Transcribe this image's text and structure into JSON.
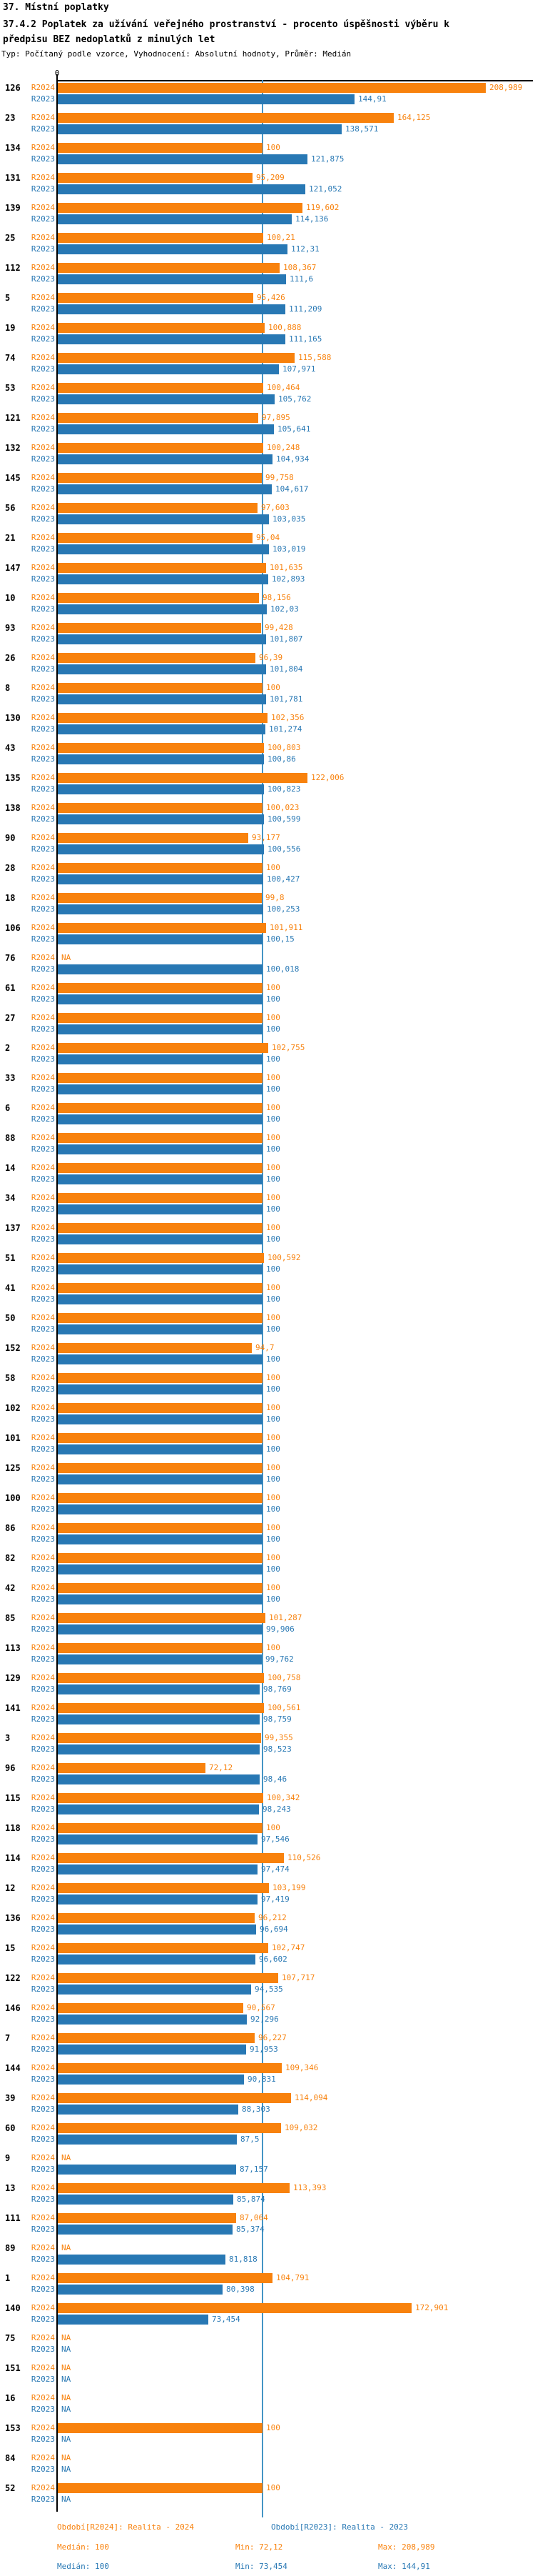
{
  "header": {
    "line1": "37. Místní poplatky",
    "line2": "37.4.2 Poplatek za užívání veřejného prostranství - procento úspěšnosti výběru k předpisu BEZ nedoplatků z minulých let",
    "line3": "Typ: Počítaný podle vzorce, Vyhodnocení: Absolutní hodnoty, Průměr: Medián"
  },
  "axis": {
    "zero_label": "0",
    "median_reference_value": 100,
    "x_min": 0,
    "x_max_visible": 232,
    "decimal_separator": ","
  },
  "colors": {
    "r2024_bar": "#F8820D",
    "r2023_bar": "#2878B4",
    "median_line": "#4494C4",
    "axis": "#000000",
    "background": "#FFFFFF"
  },
  "series_labels": {
    "r2024": "R2024",
    "r2023": "R2023",
    "na": "NA"
  },
  "legend": {
    "r2024_title": "Období[R2024]: Realita - 2024",
    "r2023_title": "Období[R2023]: Realita - 2023",
    "r2024_median": "Medián: 100",
    "r2024_min": "Min: 72,12",
    "r2024_max": "Max: 208,989",
    "r2023_median": "Medián: 100",
    "r2023_min": "Min: 73,454",
    "r2023_max": "Max: 144,91"
  },
  "chart_data": {
    "type": "bar",
    "orientation": "horizontal",
    "title": "37.4.2 Poplatek za užívání veřejného prostranství - procento úspěšnosti výběru k předpisu BEZ nedoplatků z minulých let",
    "xlabel": "",
    "ylabel": "",
    "xlim": [
      0,
      232
    ],
    "grid": false,
    "legend_position": "bottom",
    "reference_line_x": 100,
    "series_names": [
      "R2024",
      "R2023"
    ],
    "na_label": "NA",
    "rows": [
      {
        "id": "126",
        "v2024": 208.989,
        "t2024": "208,989",
        "v2023": 144.91,
        "t2023": "144,91"
      },
      {
        "id": "23",
        "v2024": 164.125,
        "t2024": "164,125",
        "v2023": 138.571,
        "t2023": "138,571"
      },
      {
        "id": "134",
        "v2024": 100,
        "t2024": "100",
        "v2023": 121.875,
        "t2023": "121,875"
      },
      {
        "id": "131",
        "v2024": 95.209,
        "t2024": "95,209",
        "v2023": 121.052,
        "t2023": "121,052"
      },
      {
        "id": "139",
        "v2024": 119.602,
        "t2024": "119,602",
        "v2023": 114.136,
        "t2023": "114,136"
      },
      {
        "id": "25",
        "v2024": 100.21,
        "t2024": "100,21",
        "v2023": 112.31,
        "t2023": "112,31"
      },
      {
        "id": "112",
        "v2024": 108.367,
        "t2024": "108,367",
        "v2023": 111.6,
        "t2023": "111,6"
      },
      {
        "id": "5",
        "v2024": 95.426,
        "t2024": "95,426",
        "v2023": 111.209,
        "t2023": "111,209"
      },
      {
        "id": "19",
        "v2024": 100.888,
        "t2024": "100,888",
        "v2023": 111.165,
        "t2023": "111,165"
      },
      {
        "id": "74",
        "v2024": 115.588,
        "t2024": "115,588",
        "v2023": 107.971,
        "t2023": "107,971"
      },
      {
        "id": "53",
        "v2024": 100.464,
        "t2024": "100,464",
        "v2023": 105.762,
        "t2023": "105,762"
      },
      {
        "id": "121",
        "v2024": 97.895,
        "t2024": "97,895",
        "v2023": 105.641,
        "t2023": "105,641"
      },
      {
        "id": "132",
        "v2024": 100.248,
        "t2024": "100,248",
        "v2023": 104.934,
        "t2023": "104,934"
      },
      {
        "id": "145",
        "v2024": 99.758,
        "t2024": "99,758",
        "v2023": 104.617,
        "t2023": "104,617"
      },
      {
        "id": "56",
        "v2024": 97.603,
        "t2024": "97,603",
        "v2023": 103.035,
        "t2023": "103,035"
      },
      {
        "id": "21",
        "v2024": 95.04,
        "t2024": "95,04",
        "v2023": 103.019,
        "t2023": "103,019"
      },
      {
        "id": "147",
        "v2024": 101.635,
        "t2024": "101,635",
        "v2023": 102.893,
        "t2023": "102,893"
      },
      {
        "id": "10",
        "v2024": 98.156,
        "t2024": "98,156",
        "v2023": 102.03,
        "t2023": "102,03"
      },
      {
        "id": "93",
        "v2024": 99.428,
        "t2024": "99,428",
        "v2023": 101.807,
        "t2023": "101,807"
      },
      {
        "id": "26",
        "v2024": 96.39,
        "t2024": "96,39",
        "v2023": 101.804,
        "t2023": "101,804"
      },
      {
        "id": "8",
        "v2024": 100,
        "t2024": "100",
        "v2023": 101.781,
        "t2023": "101,781"
      },
      {
        "id": "130",
        "v2024": 102.356,
        "t2024": "102,356",
        "v2023": 101.274,
        "t2023": "101,274"
      },
      {
        "id": "43",
        "v2024": 100.803,
        "t2024": "100,803",
        "v2023": 100.86,
        "t2023": "100,86"
      },
      {
        "id": "135",
        "v2024": 122.006,
        "t2024": "122,006",
        "v2023": 100.823,
        "t2023": "100,823"
      },
      {
        "id": "138",
        "v2024": 100.023,
        "t2024": "100,023",
        "v2023": 100.599,
        "t2023": "100,599"
      },
      {
        "id": "90",
        "v2024": 93.177,
        "t2024": "93,177",
        "v2023": 100.556,
        "t2023": "100,556"
      },
      {
        "id": "28",
        "v2024": 100,
        "t2024": "100",
        "v2023": 100.427,
        "t2023": "100,427"
      },
      {
        "id": "18",
        "v2024": 99.8,
        "t2024": "99,8",
        "v2023": 100.253,
        "t2023": "100,253"
      },
      {
        "id": "106",
        "v2024": 101.911,
        "t2024": "101,911",
        "v2023": 100.15,
        "t2023": "100,15"
      },
      {
        "id": "76",
        "v2024": null,
        "t2024": "NA",
        "v2023": 100.018,
        "t2023": "100,018"
      },
      {
        "id": "61",
        "v2024": 100,
        "t2024": "100",
        "v2023": 100,
        "t2023": "100"
      },
      {
        "id": "27",
        "v2024": 100,
        "t2024": "100",
        "v2023": 100,
        "t2023": "100"
      },
      {
        "id": "2",
        "v2024": 102.755,
        "t2024": "102,755",
        "v2023": 100,
        "t2023": "100"
      },
      {
        "id": "33",
        "v2024": 100,
        "t2024": "100",
        "v2023": 100,
        "t2023": "100"
      },
      {
        "id": "6",
        "v2024": 100,
        "t2024": "100",
        "v2023": 100,
        "t2023": "100"
      },
      {
        "id": "88",
        "v2024": 100,
        "t2024": "100",
        "v2023": 100,
        "t2023": "100"
      },
      {
        "id": "14",
        "v2024": 100,
        "t2024": "100",
        "v2023": 100,
        "t2023": "100"
      },
      {
        "id": "34",
        "v2024": 100,
        "t2024": "100",
        "v2023": 100,
        "t2023": "100"
      },
      {
        "id": "137",
        "v2024": 100,
        "t2024": "100",
        "v2023": 100,
        "t2023": "100"
      },
      {
        "id": "51",
        "v2024": 100.592,
        "t2024": "100,592",
        "v2023": 100,
        "t2023": "100"
      },
      {
        "id": "41",
        "v2024": 100,
        "t2024": "100",
        "v2023": 100,
        "t2023": "100"
      },
      {
        "id": "50",
        "v2024": 100,
        "t2024": "100",
        "v2023": 100,
        "t2023": "100"
      },
      {
        "id": "152",
        "v2024": 94.7,
        "t2024": "94,7",
        "v2023": 100,
        "t2023": "100"
      },
      {
        "id": "58",
        "v2024": 100,
        "t2024": "100",
        "v2023": 100,
        "t2023": "100"
      },
      {
        "id": "102",
        "v2024": 100,
        "t2024": "100",
        "v2023": 100,
        "t2023": "100"
      },
      {
        "id": "101",
        "v2024": 100,
        "t2024": "100",
        "v2023": 100,
        "t2023": "100"
      },
      {
        "id": "125",
        "v2024": 100,
        "t2024": "100",
        "v2023": 100,
        "t2023": "100"
      },
      {
        "id": "100",
        "v2024": 100,
        "t2024": "100",
        "v2023": 100,
        "t2023": "100"
      },
      {
        "id": "86",
        "v2024": 100,
        "t2024": "100",
        "v2023": 100,
        "t2023": "100"
      },
      {
        "id": "82",
        "v2024": 100,
        "t2024": "100",
        "v2023": 100,
        "t2023": "100"
      },
      {
        "id": "42",
        "v2024": 100,
        "t2024": "100",
        "v2023": 100,
        "t2023": "100"
      },
      {
        "id": "85",
        "v2024": 101.287,
        "t2024": "101,287",
        "v2023": 99.906,
        "t2023": "99,906"
      },
      {
        "id": "113",
        "v2024": 100,
        "t2024": "100",
        "v2023": 99.762,
        "t2023": "99,762"
      },
      {
        "id": "129",
        "v2024": 100.758,
        "t2024": "100,758",
        "v2023": 98.769,
        "t2023": "98,769"
      },
      {
        "id": "141",
        "v2024": 100.561,
        "t2024": "100,561",
        "v2023": 98.759,
        "t2023": "98,759"
      },
      {
        "id": "3",
        "v2024": 99.355,
        "t2024": "99,355",
        "v2023": 98.523,
        "t2023": "98,523"
      },
      {
        "id": "96",
        "v2024": 72.12,
        "t2024": "72,12",
        "v2023": 98.46,
        "t2023": "98,46"
      },
      {
        "id": "115",
        "v2024": 100.342,
        "t2024": "100,342",
        "v2023": 98.243,
        "t2023": "98,243"
      },
      {
        "id": "118",
        "v2024": 100,
        "t2024": "100",
        "v2023": 97.546,
        "t2023": "97,546"
      },
      {
        "id": "114",
        "v2024": 110.526,
        "t2024": "110,526",
        "v2023": 97.474,
        "t2023": "97,474"
      },
      {
        "id": "12",
        "v2024": 103.199,
        "t2024": "103,199",
        "v2023": 97.419,
        "t2023": "97,419"
      },
      {
        "id": "136",
        "v2024": 96.212,
        "t2024": "96,212",
        "v2023": 96.694,
        "t2023": "96,694"
      },
      {
        "id": "15",
        "v2024": 102.747,
        "t2024": "102,747",
        "v2023": 96.602,
        "t2023": "96,602"
      },
      {
        "id": "122",
        "v2024": 107.717,
        "t2024": "107,717",
        "v2023": 94.535,
        "t2023": "94,535"
      },
      {
        "id": "146",
        "v2024": 90.567,
        "t2024": "90,567",
        "v2023": 92.296,
        "t2023": "92,296"
      },
      {
        "id": "7",
        "v2024": 96.227,
        "t2024": "96,227",
        "v2023": 91.953,
        "t2023": "91,953"
      },
      {
        "id": "144",
        "v2024": 109.346,
        "t2024": "109,346",
        "v2023": 90.831,
        "t2023": "90,831"
      },
      {
        "id": "39",
        "v2024": 114.094,
        "t2024": "114,094",
        "v2023": 88.303,
        "t2023": "88,303"
      },
      {
        "id": "60",
        "v2024": 109.032,
        "t2024": "109,032",
        "v2023": 87.5,
        "t2023": "87,5"
      },
      {
        "id": "9",
        "v2024": null,
        "t2024": "NA",
        "v2023": 87.157,
        "t2023": "87,157"
      },
      {
        "id": "13",
        "v2024": 113.393,
        "t2024": "113,393",
        "v2023": 85.874,
        "t2023": "85,874"
      },
      {
        "id": "111",
        "v2024": 87.064,
        "t2024": "87,064",
        "v2023": 85.374,
        "t2023": "85,374"
      },
      {
        "id": "89",
        "v2024": null,
        "t2024": "NA",
        "v2023": 81.818,
        "t2023": "81,818"
      },
      {
        "id": "1",
        "v2024": 104.791,
        "t2024": "104,791",
        "v2023": 80.398,
        "t2023": "80,398"
      },
      {
        "id": "140",
        "v2024": 172.901,
        "t2024": "172,901",
        "v2023": 73.454,
        "t2023": "73,454"
      },
      {
        "id": "75",
        "v2024": null,
        "t2024": "NA",
        "v2023": null,
        "t2023": "NA"
      },
      {
        "id": "151",
        "v2024": null,
        "t2024": "NA",
        "v2023": null,
        "t2023": "NA"
      },
      {
        "id": "16",
        "v2024": null,
        "t2024": "NA",
        "v2023": null,
        "t2023": "NA"
      },
      {
        "id": "153",
        "v2024": 100,
        "t2024": "100",
        "v2023": null,
        "t2023": "NA"
      },
      {
        "id": "84",
        "v2024": null,
        "t2024": "NA",
        "v2023": null,
        "t2023": "NA"
      },
      {
        "id": "52",
        "v2024": 100,
        "t2024": "100",
        "v2023": null,
        "t2023": "NA"
      }
    ]
  }
}
